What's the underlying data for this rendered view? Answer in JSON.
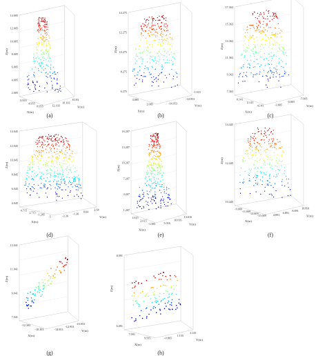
{
  "chart_data": [
    {
      "type": "scatter",
      "caption": "(a)",
      "zlabel": "Z(m)",
      "xlabel": "X(m)",
      "ylabel": "Y(m)",
      "z_ticks": [
        "14.005",
        "12.005",
        "10.005",
        "8.005",
        "6.005",
        "4.005",
        "2.005"
      ],
      "x_ticks": [
        "0.955",
        "4.955",
        "8.955"
      ],
      "y_ticks": [
        "12.103",
        "10.103",
        "8.103"
      ],
      "zlim": [
        2.005,
        14.005
      ]
    },
    {
      "type": "scatter",
      "caption": "(b)",
      "zlabel": "Z(m)",
      "xlabel": "X(m)",
      "ylabel": "Y(m)",
      "z_ticks": [
        "14.275",
        "12.275",
        "10.275",
        "8.275",
        "6.275"
      ],
      "x_ticks": [
        "4.085",
        "2.085"
      ],
      "y_ticks": [
        "-14.953",
        "-10.953"
      ],
      "extra_ticks": [
        "-1.915"
      ],
      "zlim": [
        6.275,
        14.275
      ]
    },
    {
      "type": "scatter",
      "caption": "(c)",
      "zlabel": "Z(m)",
      "xlabel": "X(m)",
      "ylabel": "Y(m)",
      "z_ticks": [
        "17.363",
        "15.363",
        "13.363",
        "11.363",
        "9.363",
        "7.363"
      ],
      "x_ticks": [
        "0.141",
        "2.141",
        "4.141"
      ],
      "y_ticks": [
        "-3.005",
        "-5.005",
        "-7.005"
      ],
      "zlim": [
        7.363,
        17.363
      ]
    },
    {
      "type": "scatter",
      "caption": "(d)",
      "zlabel": "Z(m)",
      "xlabel": "X(m)",
      "ylabel": "Y(m)",
      "z_ticks": [
        "14.045",
        "12.045",
        "10.045",
        "8.045",
        "6.045",
        "4.045"
      ],
      "y_ticks": [
        "-3.36",
        "-1.36",
        "0.64",
        "2.64"
      ],
      "x_ticks": [
        "4.715",
        "2.715",
        "-1.285",
        "-5"
      ],
      "zlim": [
        4.045,
        14.045
      ]
    },
    {
      "type": "scatter",
      "caption": "(e)",
      "zlabel": "Z(m)",
      "xlabel": "X(m)",
      "ylabel": "Y(m)",
      "z_ticks": [
        "16.207",
        "13.207",
        "10.207",
        "7.207",
        "4.207",
        "1.207"
      ],
      "y_ticks": [
        "5.016",
        "10.016",
        "13.016"
      ],
      "x_ticks": [
        "1.615",
        "2.615",
        "-1.385"
      ],
      "zlim": [
        1.207,
        16.207
      ]
    },
    {
      "type": "scatter",
      "caption": "(f)",
      "zlabel": "Z(m)",
      "xlabel": "X(m)",
      "ylabel": "Y(m)",
      "z_ticks": [
        "14.445",
        "12.445",
        "10.445"
      ],
      "y_ticks": [
        "4.891",
        "6.891",
        "8.891",
        "10.891"
      ],
      "x_ticks": [
        "-9.009",
        "-11.009",
        "-13.009",
        "-15.009"
      ],
      "zlim": [
        8.445,
        14.445
      ]
    },
    {
      "type": "scatter",
      "caption": "(g)",
      "zlabel": "Z(m)",
      "xlabel": "X(m)",
      "ylabel": "Y(m)",
      "z_ticks": [
        "13.041",
        "11.041",
        "9.041",
        "7.041"
      ],
      "y_ticks": [
        "-14.953",
        "-12.953",
        "-10.953"
      ],
      "x_ticks": [
        "-12.393",
        "-10.393"
      ],
      "zlim": [
        7.041,
        13.041
      ]
    },
    {
      "type": "scatter",
      "caption": "(h)",
      "zlabel": "Z(m)",
      "xlabel": "X(m)",
      "ylabel": "Y(m)",
      "z_ticks": [
        "8.091",
        "6.091"
      ],
      "x_ticks": [
        "7.091",
        "9.595"
      ],
      "y_ticks": [
        "-0.865",
        "1.135",
        "3.135"
      ],
      "zlim": [
        6.091,
        8.091
      ]
    }
  ]
}
